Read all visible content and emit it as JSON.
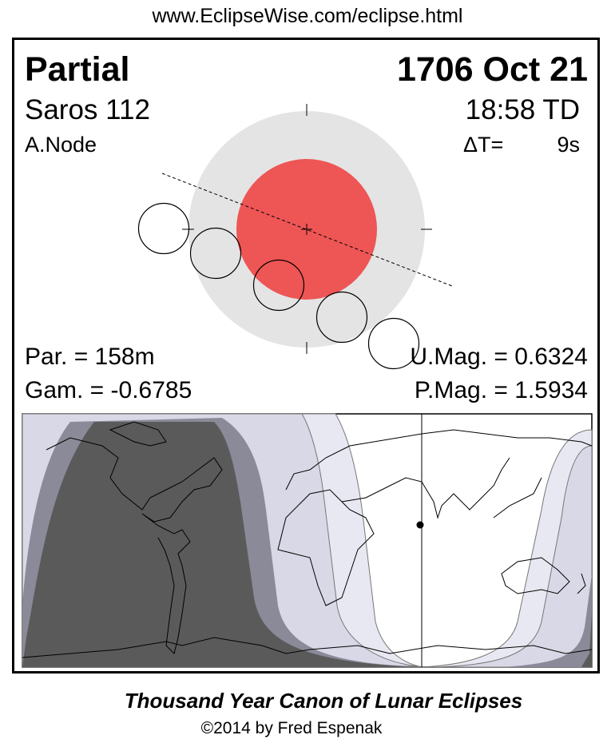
{
  "header_url": "www.EclipseWise.com/eclipse.html",
  "eclipse": {
    "type": "Partial",
    "date": "1706 Oct 21",
    "saros": "Saros 112",
    "time": "18:58 TD",
    "node": "A.Node",
    "delta_t_label": "ΔT=",
    "delta_t_value": "9s",
    "parameters": {
      "partial_duration": "Par. = 158m",
      "gamma": "Gam. = -0.6785",
      "umbral_magnitude": "U.Mag. = 0.6324",
      "penumbral_magnitude": "P.Mag. = 1.5934"
    }
  },
  "colors": {
    "umbra": "#ee5555",
    "penumbra": "#e4e4e4",
    "map_dark": "#5a5a5a",
    "map_medium": "#8a8a98",
    "map_light": "#d8d8e6",
    "map_lighter": "#e8e8f2"
  },
  "footer": {
    "title": "Thousand Year Canon of Lunar Eclipses",
    "copyright": "©2014 by Fred Espenak"
  }
}
